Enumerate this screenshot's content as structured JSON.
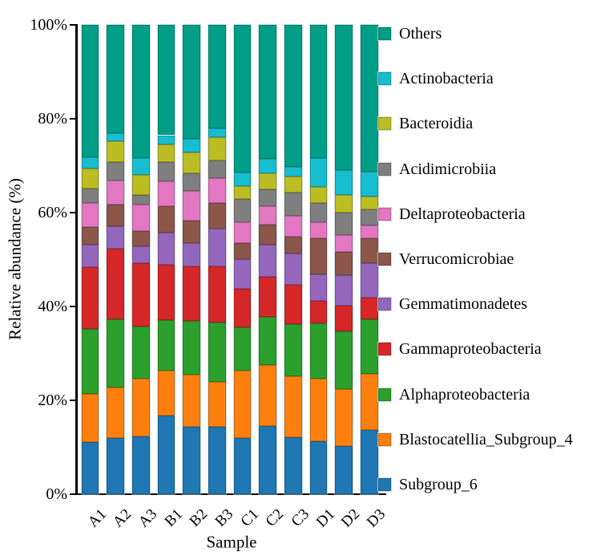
{
  "figure_title": "",
  "axes": {
    "ylabel": "Relative abundance (%)",
    "xlabel": "Sample"
  },
  "chart_data": {
    "type": "bar",
    "stacked": true,
    "normalized_percent": true,
    "title": "",
    "xlabel": "Sample",
    "ylabel": "Relative abundance (%)",
    "ylim": [
      0,
      100
    ],
    "yticks": [
      0,
      20,
      40,
      60,
      80,
      100
    ],
    "ytick_suffix": "%",
    "grid": false,
    "legend_position": "right",
    "legend_order_top_to_bottom": [
      "Others",
      "Actinobacteria",
      "Bacteroidia",
      "Acidimicrobiia",
      "Deltaproteobacteria",
      "Verrucomicrobiae",
      "Gemmatimonadetes",
      "Gammaproteobacteria",
      "Alphaproteobacteria",
      "Blastocatellia_Subgroup_4",
      "Subgroup_6"
    ],
    "categories": [
      "A1",
      "A2",
      "A3",
      "B1",
      "B2",
      "B3",
      "C1",
      "C2",
      "C3",
      "D1",
      "D2",
      "D3"
    ],
    "series": [
      {
        "name": "Subgroup_6",
        "color": "#1f77b4",
        "values": [
          11.1,
          12.0,
          12.3,
          16.7,
          14.4,
          14.4,
          11.9,
          14.6,
          12.1,
          11.3,
          10.3,
          13.7
        ]
      },
      {
        "name": "Blastocatellia_Subgroup_4",
        "color": "#ff7f0e",
        "values": [
          10.3,
          10.7,
          12.4,
          9.6,
          11.0,
          9.5,
          14.5,
          12.9,
          13.0,
          13.4,
          12.1,
          11.9
        ]
      },
      {
        "name": "Alphaproteobacteria",
        "color": "#2ca02c",
        "values": [
          13.8,
          14.5,
          11.1,
          10.8,
          11.6,
          12.6,
          9.1,
          10.3,
          11.1,
          11.7,
          12.3,
          11.6
        ]
      },
      {
        "name": "Gammaproteobacteria",
        "color": "#d62728",
        "values": [
          13.1,
          15.1,
          13.4,
          11.8,
          11.6,
          12.1,
          8.3,
          8.5,
          8.4,
          4.8,
          5.4,
          4.6
        ]
      },
      {
        "name": "Gemmatimonadetes",
        "color": "#9467bd",
        "values": [
          4.9,
          4.8,
          3.7,
          6.8,
          4.9,
          8.0,
          6.3,
          6.9,
          6.6,
          5.7,
          6.5,
          7.4
        ]
      },
      {
        "name": "Verrucomicrobiae",
        "color": "#8c564b",
        "values": [
          3.7,
          4.6,
          3.1,
          5.7,
          4.8,
          5.4,
          3.4,
          4.2,
          3.7,
          7.7,
          5.1,
          5.4
        ]
      },
      {
        "name": "Deltaproteobacteria",
        "color": "#e377c2",
        "values": [
          5.1,
          5.1,
          5.7,
          5.2,
          6.3,
          5.4,
          4.5,
          4.0,
          4.5,
          3.4,
          3.5,
          2.6
        ]
      },
      {
        "name": "Acidimicrobiia",
        "color": "#7f7f7f",
        "values": [
          3.1,
          4.0,
          2.0,
          4.2,
          3.7,
          3.7,
          4.9,
          3.5,
          4.9,
          4.0,
          4.8,
          3.5
        ]
      },
      {
        "name": "Bacteroidia",
        "color": "#bcbd22",
        "values": [
          4.3,
          4.4,
          4.3,
          3.7,
          4.5,
          4.9,
          2.8,
          3.4,
          3.4,
          3.4,
          3.8,
          2.7
        ]
      },
      {
        "name": "Actinobacteria",
        "color": "#17becf",
        "values": [
          2.4,
          1.7,
          3.7,
          2.0,
          2.9,
          2.0,
          2.8,
          3.1,
          2.0,
          6.3,
          5.3,
          5.4
        ]
      },
      {
        "name": "Others",
        "color": "#009e87",
        "values": [
          28.2,
          23.1,
          28.3,
          23.5,
          24.3,
          22.0,
          31.5,
          28.6,
          30.3,
          28.3,
          30.9,
          31.2
        ]
      }
    ]
  },
  "layout_text": {
    "note": ""
  }
}
